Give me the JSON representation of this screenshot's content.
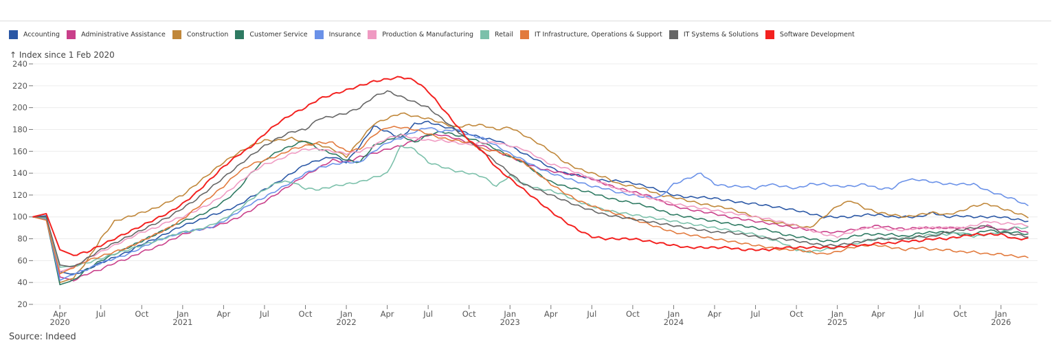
{
  "chart_data": {
    "type": "line",
    "title": "",
    "ylabel": "↑ Index since 1 Feb 2020",
    "xlabel": "",
    "source": "Source: Indeed",
    "ylim": [
      20,
      240
    ],
    "yticks": [
      20,
      40,
      60,
      80,
      100,
      120,
      140,
      160,
      180,
      200,
      220,
      240
    ],
    "grid": true,
    "legend_position": "top-left",
    "x_start": "2020-02",
    "x_step": "month",
    "xticks": [
      {
        "month_index": 2,
        "label": "Apr",
        "sub": "2020"
      },
      {
        "month_index": 5,
        "label": "Jul",
        "sub": ""
      },
      {
        "month_index": 8,
        "label": "Oct",
        "sub": ""
      },
      {
        "month_index": 11,
        "label": "Jan",
        "sub": "2021"
      },
      {
        "month_index": 14,
        "label": "Apr",
        "sub": ""
      },
      {
        "month_index": 17,
        "label": "Jul",
        "sub": ""
      },
      {
        "month_index": 20,
        "label": "Oct",
        "sub": ""
      },
      {
        "month_index": 23,
        "label": "Jan",
        "sub": "2022"
      },
      {
        "month_index": 26,
        "label": "Apr",
        "sub": ""
      },
      {
        "month_index": 29,
        "label": "Jul",
        "sub": ""
      },
      {
        "month_index": 32,
        "label": "Oct",
        "sub": ""
      },
      {
        "month_index": 35,
        "label": "Jan",
        "sub": "2023"
      },
      {
        "month_index": 38,
        "label": "Apr",
        "sub": ""
      },
      {
        "month_index": 41,
        "label": "Jul",
        "sub": ""
      },
      {
        "month_index": 44,
        "label": "Oct",
        "sub": ""
      },
      {
        "month_index": 47,
        "label": "Jan",
        "sub": "2024"
      },
      {
        "month_index": 50,
        "label": "Apr",
        "sub": ""
      },
      {
        "month_index": 53,
        "label": "Jul",
        "sub": ""
      },
      {
        "month_index": 56,
        "label": "Oct",
        "sub": ""
      },
      {
        "month_index": 59,
        "label": "Jan",
        "sub": "2025"
      },
      {
        "month_index": 62,
        "label": "Apr",
        "sub": ""
      },
      {
        "month_index": 65,
        "label": "Jul",
        "sub": ""
      },
      {
        "month_index": 68,
        "label": "Oct",
        "sub": ""
      },
      {
        "month_index": 71,
        "label": "Jan",
        "sub": "2026"
      }
    ],
    "series": [
      {
        "name": "Accounting",
        "color": "#2a57a5",
        "values": [
          100,
          101,
          50,
          47,
          52,
          58,
          63,
          68,
          75,
          80,
          86,
          92,
          96,
          101,
          105,
          110,
          118,
          125,
          132,
          140,
          148,
          152,
          155,
          150,
          165,
          183,
          178,
          172,
          185,
          187,
          183,
          180,
          176,
          172,
          170,
          165,
          158,
          152,
          145,
          140,
          138,
          135,
          133,
          133,
          131,
          128,
          124,
          120,
          118,
          118,
          117,
          115,
          113,
          112,
          110,
          108,
          106,
          103,
          100,
          100,
          100,
          102,
          102,
          100,
          100,
          100,
          104,
          100,
          101,
          100,
          100,
          100,
          98,
          96
        ]
      },
      {
        "name": "Administrative Assistance",
        "color": "#c93f8a",
        "values": [
          100,
          99,
          45,
          42,
          48,
          52,
          58,
          62,
          68,
          72,
          78,
          84,
          88,
          90,
          94,
          99,
          106,
          114,
          122,
          130,
          138,
          145,
          152,
          150,
          155,
          158,
          162,
          165,
          170,
          175,
          175,
          172,
          168,
          165,
          160,
          155,
          150,
          145,
          142,
          140,
          138,
          135,
          130,
          126,
          123,
          120,
          115,
          110,
          107,
          105,
          103,
          100,
          98,
          96,
          94,
          92,
          90,
          88,
          86,
          86,
          88,
          90,
          92,
          90,
          89,
          90,
          90,
          90,
          90,
          88,
          92,
          88,
          90,
          85
        ]
      },
      {
        "name": "Construction",
        "color": "#c0873a",
        "values": [
          100,
          98,
          40,
          44,
          60,
          80,
          96,
          100,
          104,
          108,
          114,
          120,
          130,
          140,
          150,
          158,
          165,
          170,
          170,
          172,
          168,
          166,
          162,
          155,
          170,
          185,
          190,
          195,
          192,
          190,
          186,
          182,
          184,
          184,
          180,
          182,
          175,
          168,
          160,
          150,
          144,
          140,
          136,
          130,
          128,
          125,
          120,
          118,
          115,
          112,
          110,
          108,
          104,
          100,
          96,
          94,
          92,
          90,
          100,
          110,
          115,
          108,
          104,
          102,
          100,
          102,
          104,
          102,
          105,
          110,
          112,
          108,
          104,
          100
        ]
      },
      {
        "name": "Customer Service",
        "color": "#2e7a62",
        "values": [
          100,
          98,
          38,
          42,
          52,
          60,
          66,
          72,
          78,
          84,
          90,
          96,
          100,
          106,
          114,
          124,
          140,
          152,
          160,
          165,
          170,
          162,
          158,
          152,
          150,
          165,
          170,
          175,
          168,
          175,
          178,
          175,
          172,
          168,
          162,
          155,
          150,
          140,
          132,
          128,
          125,
          122,
          118,
          115,
          113,
          110,
          106,
          102,
          100,
          98,
          96,
          94,
          92,
          90,
          88,
          84,
          82,
          80,
          78,
          78,
          82,
          84,
          84,
          84,
          82,
          85,
          86,
          86,
          84,
          84,
          88,
          86,
          86,
          84
        ]
      },
      {
        "name": "Insurance",
        "color": "#6a91e8",
        "values": [
          100,
          98,
          42,
          48,
          52,
          58,
          62,
          66,
          72,
          78,
          82,
          86,
          88,
          90,
          96,
          104,
          112,
          118,
          125,
          132,
          140,
          145,
          148,
          150,
          150,
          160,
          168,
          172,
          178,
          182,
          178,
          180,
          175,
          172,
          165,
          158,
          152,
          145,
          140,
          136,
          132,
          128,
          126,
          122,
          120,
          118,
          118,
          130,
          135,
          140,
          130,
          128,
          128,
          126,
          130,
          128,
          126,
          130,
          130,
          128,
          128,
          130,
          126,
          126,
          134,
          134,
          132,
          130,
          130,
          130,
          124,
          120,
          116,
          110
        ]
      },
      {
        "name": "Production & Manufacturing",
        "color": "#ef9ac2",
        "values": [
          100,
          99,
          50,
          54,
          62,
          68,
          74,
          80,
          86,
          90,
          96,
          100,
          106,
          112,
          120,
          130,
          140,
          148,
          152,
          158,
          162,
          162,
          160,
          158,
          160,
          165,
          172,
          175,
          172,
          170,
          170,
          168,
          166,
          168,
          168,
          165,
          162,
          155,
          148,
          145,
          140,
          135,
          130,
          125,
          122,
          118,
          115,
          112,
          110,
          108,
          106,
          104,
          102,
          100,
          98,
          95,
          92,
          88,
          84,
          82,
          86,
          90,
          90,
          88,
          88,
          90,
          90,
          90,
          90,
          92,
          96,
          94,
          94,
          92
        ]
      },
      {
        "name": "Retail",
        "color": "#7bc0aa",
        "values": [
          100,
          99,
          54,
          55,
          58,
          62,
          66,
          70,
          74,
          78,
          82,
          86,
          88,
          92,
          98,
          106,
          116,
          125,
          132,
          132,
          126,
          125,
          128,
          130,
          132,
          136,
          140,
          165,
          162,
          150,
          146,
          142,
          140,
          137,
          128,
          138,
          130,
          126,
          124,
          120,
          114,
          110,
          106,
          104,
          102,
          100,
          98,
          96,
          94,
          92,
          90,
          88,
          86,
          84,
          80,
          76,
          70,
          68,
          70,
          72,
          74,
          78,
          80,
          80,
          80,
          82,
          84,
          84,
          86,
          82,
          84,
          86,
          90,
          90
        ]
      },
      {
        "name": "IT Infrastructure, Operations & Support",
        "color": "#e27a3d",
        "values": [
          100,
          97,
          48,
          54,
          60,
          64,
          68,
          72,
          78,
          84,
          90,
          98,
          108,
          118,
          128,
          140,
          148,
          152,
          156,
          162,
          165,
          168,
          168,
          160,
          162,
          175,
          182,
          182,
          180,
          176,
          172,
          170,
          168,
          162,
          160,
          156,
          150,
          140,
          130,
          122,
          115,
          110,
          106,
          102,
          98,
          94,
          90,
          86,
          84,
          82,
          80,
          78,
          76,
          74,
          72,
          70,
          70,
          68,
          66,
          68,
          72,
          74,
          74,
          72,
          70,
          72,
          70,
          70,
          68,
          68,
          66,
          66,
          64,
          63
        ]
      },
      {
        "name": "IT Systems & Solutions",
        "color": "#656565",
        "values": [
          100,
          100,
          56,
          54,
          62,
          70,
          76,
          82,
          88,
          94,
          100,
          108,
          116,
          126,
          136,
          146,
          156,
          165,
          172,
          178,
          180,
          190,
          192,
          195,
          200,
          210,
          215,
          210,
          205,
          200,
          190,
          180,
          170,
          160,
          150,
          140,
          130,
          125,
          120,
          115,
          110,
          106,
          102,
          100,
          98,
          96,
          94,
          92,
          90,
          88,
          86,
          86,
          84,
          82,
          80,
          80,
          78,
          76,
          74,
          74,
          76,
          78,
          80,
          80,
          80,
          82,
          82,
          86,
          88,
          90,
          92,
          86,
          84,
          82
        ]
      },
      {
        "name": "Software Development",
        "color": "#f3211f",
        "values": [
          100,
          103,
          70,
          65,
          68,
          74,
          80,
          86,
          92,
          98,
          104,
          112,
          122,
          134,
          146,
          156,
          164,
          176,
          186,
          194,
          200,
          208,
          212,
          216,
          220,
          224,
          226,
          228,
          225,
          215,
          200,
          185,
          170,
          160,
          145,
          135,
          125,
          115,
          105,
          96,
          88,
          82,
          80,
          80,
          80,
          78,
          76,
          74,
          72,
          72,
          72,
          72,
          70,
          70,
          70,
          72,
          72,
          72,
          72,
          72,
          74,
          74,
          76,
          76,
          78,
          78,
          80,
          80,
          82,
          84,
          84,
          84,
          80,
          80
        ]
      }
    ]
  }
}
